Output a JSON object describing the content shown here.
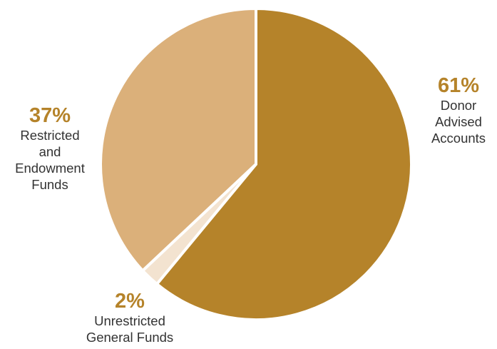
{
  "chart_data": {
    "type": "pie",
    "slices": [
      {
        "label": "Donor Advised Accounts",
        "value": 61,
        "pct_label": "61%",
        "desc_label": "Donor\nAdvised\nAccounts",
        "color": "#b5832a"
      },
      {
        "label": "Unrestricted General Funds",
        "value": 2,
        "pct_label": "2%",
        "desc_label": "Unrestricted\nGeneral Funds",
        "color": "#f3e3d0"
      },
      {
        "label": "Restricted and Endowment Funds",
        "value": 37,
        "pct_label": "37%",
        "desc_label": "Restricted\nand\nEndowment\nFunds",
        "color": "#dbb07a"
      }
    ],
    "start_angle_deg": 0,
    "direction": "clockwise",
    "separator_color": "#ffffff"
  }
}
